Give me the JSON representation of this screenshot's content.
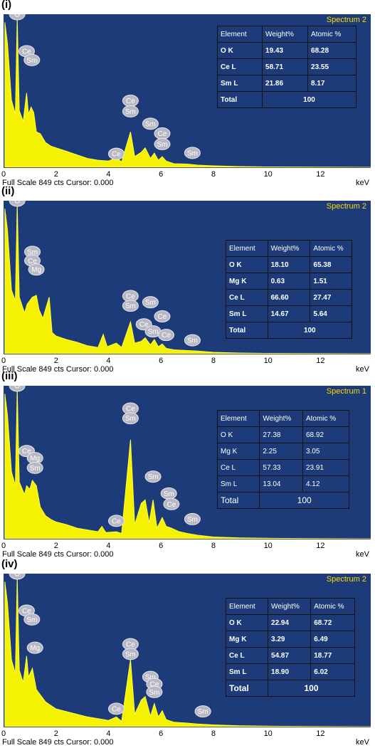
{
  "footer_text": "Full Scale 849 cts Cursor: 0.000",
  "x_unit": "keV",
  "chart_data": [
    {
      "panel_label": "(i)",
      "type": "line",
      "title": "Spectrum 2",
      "xlabel": "keV",
      "xlim": [
        0,
        14
      ],
      "ylim": [
        0,
        849
      ],
      "x_ticks": [
        "0",
        "2",
        "4",
        "6",
        "8",
        "10",
        "12"
      ],
      "series": [
        {
          "values": [
            [
              0.05,
              820
            ],
            [
              0.15,
              700
            ],
            [
              0.3,
              380
            ],
            [
              0.45,
              300
            ],
            [
              0.52,
              849
            ],
            [
              0.6,
              320
            ],
            [
              0.75,
              260
            ],
            [
              0.88,
              420
            ],
            [
              0.95,
              300
            ],
            [
              1.05,
              340
            ],
            [
              1.15,
              310
            ],
            [
              1.25,
              200
            ],
            [
              1.4,
              190
            ],
            [
              1.6,
              140
            ],
            [
              1.8,
              120
            ],
            [
              2.0,
              110
            ],
            [
              2.4,
              90
            ],
            [
              2.8,
              70
            ],
            [
              3.2,
              50
            ],
            [
              3.6,
              40
            ],
            [
              4.0,
              35
            ],
            [
              4.3,
              55
            ],
            [
              4.5,
              30
            ],
            [
              4.84,
              200
            ],
            [
              5.0,
              60
            ],
            [
              5.25,
              85
            ],
            [
              5.4,
              110
            ],
            [
              5.6,
              50
            ],
            [
              5.75,
              80
            ],
            [
              5.9,
              40
            ],
            [
              6.05,
              60
            ],
            [
              6.2,
              35
            ],
            [
              6.5,
              20
            ],
            [
              7.0,
              18
            ],
            [
              7.4,
              12
            ],
            [
              8.0,
              8
            ],
            [
              9.0,
              4
            ],
            [
              10.0,
              2
            ],
            [
              12.0,
              1
            ],
            [
              14.0,
              0
            ]
          ]
        }
      ],
      "peak_labels": [
        {
          "label": "O",
          "x": 0.52,
          "y": 849
        },
        {
          "label": "Ce",
          "x": 0.88,
          "y": 640
        },
        {
          "label": "Sm",
          "x": 1.08,
          "y": 590
        },
        {
          "label": "Ce",
          "x": 4.3,
          "y": 60
        },
        {
          "label": "Ce",
          "x": 4.84,
          "y": 360
        },
        {
          "label": "Sm",
          "x": 4.84,
          "y": 300
        },
        {
          "label": "Sm",
          "x": 5.6,
          "y": 230
        },
        {
          "label": "Ce",
          "x": 6.05,
          "y": 175
        },
        {
          "label": "Sm",
          "x": 6.05,
          "y": 115
        },
        {
          "label": "Sm",
          "x": 7.2,
          "y": 65
        }
      ],
      "table": {
        "headers": [
          "Element",
          "Weight%",
          "Atomic %"
        ],
        "rows": [
          [
            "O K",
            "19.43",
            "68.28"
          ],
          [
            "Ce L",
            "58.71",
            "23.55"
          ],
          [
            "Sm L",
            "21.86",
            "8.17"
          ]
        ],
        "total_label": "Total",
        "total_value": "100"
      }
    },
    {
      "panel_label": "(ii)",
      "type": "line",
      "title": "Spectrum 2",
      "xlabel": "keV",
      "xlim": [
        0,
        14
      ],
      "ylim": [
        0,
        849
      ],
      "x_ticks": [
        "0",
        "2",
        "4",
        "6",
        "8",
        "10",
        "12"
      ],
      "series": [
        {
          "values": [
            [
              0.05,
              820
            ],
            [
              0.15,
              700
            ],
            [
              0.3,
              360
            ],
            [
              0.45,
              300
            ],
            [
              0.52,
              849
            ],
            [
              0.6,
              320
            ],
            [
              0.8,
              230
            ],
            [
              0.9,
              280
            ],
            [
              1.0,
              300
            ],
            [
              1.1,
              320
            ],
            [
              1.25,
              330
            ],
            [
              1.35,
              250
            ],
            [
              1.5,
              200
            ],
            [
              1.74,
              320
            ],
            [
              1.85,
              120
            ],
            [
              2.0,
              100
            ],
            [
              2.4,
              80
            ],
            [
              2.8,
              65
            ],
            [
              3.2,
              45
            ],
            [
              3.6,
              35
            ],
            [
              3.8,
              110
            ],
            [
              3.95,
              40
            ],
            [
              4.3,
              60
            ],
            [
              4.5,
              35
            ],
            [
              4.84,
              180
            ],
            [
              5.0,
              60
            ],
            [
              5.25,
              70
            ],
            [
              5.4,
              90
            ],
            [
              5.6,
              50
            ],
            [
              5.75,
              80
            ],
            [
              5.9,
              40
            ],
            [
              6.05,
              55
            ],
            [
              6.2,
              30
            ],
            [
              6.5,
              22
            ],
            [
              7.0,
              18
            ],
            [
              7.4,
              15
            ],
            [
              8.0,
              8
            ],
            [
              9.0,
              4
            ],
            [
              10.0,
              2
            ],
            [
              12.0,
              1
            ],
            [
              14.0,
              0
            ]
          ]
        }
      ],
      "peak_labels": [
        {
          "label": "O",
          "x": 0.52,
          "y": 849
        },
        {
          "label": "Sm",
          "x": 1.1,
          "y": 560
        },
        {
          "label": "Ce",
          "x": 1.1,
          "y": 510
        },
        {
          "label": "Mg",
          "x": 1.25,
          "y": 460
        },
        {
          "label": "Ce",
          "x": 4.84,
          "y": 310
        },
        {
          "label": "Sm",
          "x": 4.84,
          "y": 255
        },
        {
          "label": "Sm",
          "x": 5.6,
          "y": 275
        },
        {
          "label": "Ce",
          "x": 5.35,
          "y": 150
        },
        {
          "label": "Ce",
          "x": 6.05,
          "y": 195
        },
        {
          "label": "Sm",
          "x": 5.7,
          "y": 110
        },
        {
          "label": "Ce",
          "x": 6.2,
          "y": 90
        },
        {
          "label": "Sm",
          "x": 7.2,
          "y": 60
        }
      ],
      "table": {
        "headers": [
          "Element",
          "Weight%",
          "Atomic %"
        ],
        "rows": [
          [
            "O K",
            "18.10",
            "65.38"
          ],
          [
            "Mg K",
            "0.63",
            "1.51"
          ],
          [
            "Ce L",
            "66.60",
            "27.47"
          ],
          [
            "Sm L",
            "14.67",
            "5.64"
          ]
        ],
        "total_label": "Total",
        "total_value": "100"
      }
    },
    {
      "panel_label": "(iii)",
      "type": "line",
      "title": "Spectrum 1",
      "xlabel": "keV",
      "xlim": [
        0,
        14
      ],
      "ylim": [
        0,
        849
      ],
      "x_ticks": [
        "0",
        "2",
        "4",
        "6",
        "8",
        "10",
        "12"
      ],
      "series": [
        {
          "values": [
            [
              0.05,
              820
            ],
            [
              0.15,
              700
            ],
            [
              0.3,
              380
            ],
            [
              0.45,
              300
            ],
            [
              0.52,
              849
            ],
            [
              0.6,
              320
            ],
            [
              0.8,
              250
            ],
            [
              0.88,
              300
            ],
            [
              1.0,
              280
            ],
            [
              1.1,
              330
            ],
            [
              1.25,
              300
            ],
            [
              1.4,
              180
            ],
            [
              1.6,
              130
            ],
            [
              1.8,
              110
            ],
            [
              2.0,
              95
            ],
            [
              2.4,
              80
            ],
            [
              2.8,
              60
            ],
            [
              3.2,
              50
            ],
            [
              3.6,
              40
            ],
            [
              3.75,
              70
            ],
            [
              3.9,
              35
            ],
            [
              4.3,
              40
            ],
            [
              4.5,
              30
            ],
            [
              4.84,
              560
            ],
            [
              5.0,
              80
            ],
            [
              5.25,
              200
            ],
            [
              5.4,
              220
            ],
            [
              5.55,
              90
            ],
            [
              5.7,
              220
            ],
            [
              5.85,
              60
            ],
            [
              6.05,
              120
            ],
            [
              6.2,
              70
            ],
            [
              6.4,
              60
            ],
            [
              6.7,
              40
            ],
            [
              7.0,
              30
            ],
            [
              7.4,
              20
            ],
            [
              8.0,
              10
            ],
            [
              9.0,
              5
            ],
            [
              10.0,
              3
            ],
            [
              12.0,
              1
            ],
            [
              14.0,
              0
            ]
          ]
        }
      ],
      "peak_labels": [
        {
          "label": "O",
          "x": 0.52,
          "y": 849
        },
        {
          "label": "Ce",
          "x": 0.88,
          "y": 480
        },
        {
          "label": "Mg",
          "x": 1.2,
          "y": 440
        },
        {
          "label": "Sm",
          "x": 1.2,
          "y": 385
        },
        {
          "label": "Ce",
          "x": 4.3,
          "y": 85
        },
        {
          "label": "Ce",
          "x": 4.84,
          "y": 720
        },
        {
          "label": "Sm",
          "x": 4.84,
          "y": 665
        },
        {
          "label": "Sm",
          "x": 5.7,
          "y": 335
        },
        {
          "label": "Sm",
          "x": 6.3,
          "y": 240
        },
        {
          "label": "Ce",
          "x": 6.4,
          "y": 180
        },
        {
          "label": "Sm",
          "x": 7.2,
          "y": 95
        }
      ],
      "table": {
        "headers": [
          "Element",
          "Weight%",
          "Atomic %"
        ],
        "rows": [
          [
            "O K",
            "27.38",
            "68.92"
          ],
          [
            "Mg K",
            "2.25",
            "3.05"
          ],
          [
            "Ce L",
            "57.33",
            "23.91"
          ],
          [
            "Sm L",
            "13.04",
            "4.12"
          ]
        ],
        "total_label": "Total",
        "total_value": "100"
      }
    },
    {
      "panel_label": "(iv)",
      "type": "line",
      "title": "Spectrum 2",
      "xlabel": "keV",
      "xlim": [
        0,
        14
      ],
      "ylim": [
        0,
        849
      ],
      "x_ticks": [
        "0",
        "2",
        "4",
        "6",
        "8",
        "10",
        "12"
      ],
      "series": [
        {
          "values": [
            [
              0.05,
              820
            ],
            [
              0.15,
              700
            ],
            [
              0.3,
              380
            ],
            [
              0.45,
              300
            ],
            [
              0.52,
              849
            ],
            [
              0.6,
              320
            ],
            [
              0.75,
              250
            ],
            [
              0.88,
              400
            ],
            [
              0.95,
              280
            ],
            [
              1.1,
              330
            ],
            [
              1.25,
              210
            ],
            [
              1.4,
              180
            ],
            [
              1.6,
              140
            ],
            [
              1.8,
              120
            ],
            [
              2.0,
              100
            ],
            [
              2.4,
              85
            ],
            [
              2.8,
              70
            ],
            [
              3.2,
              55
            ],
            [
              3.6,
              45
            ],
            [
              4.0,
              35
            ],
            [
              4.3,
              55
            ],
            [
              4.5,
              30
            ],
            [
              4.84,
              380
            ],
            [
              5.0,
              70
            ],
            [
              5.25,
              150
            ],
            [
              5.4,
              170
            ],
            [
              5.6,
              60
            ],
            [
              5.75,
              130
            ],
            [
              5.9,
              55
            ],
            [
              6.05,
              90
            ],
            [
              6.2,
              40
            ],
            [
              6.5,
              25
            ],
            [
              7.0,
              20
            ],
            [
              7.4,
              15
            ],
            [
              8.0,
              10
            ],
            [
              9.0,
              5
            ],
            [
              10.0,
              3
            ],
            [
              12.0,
              1
            ],
            [
              14.0,
              0
            ]
          ]
        }
      ],
      "peak_labels": [
        {
          "label": "O",
          "x": 0.52,
          "y": 849
        },
        {
          "label": "Ce",
          "x": 0.88,
          "y": 640
        },
        {
          "label": "Sm",
          "x": 1.08,
          "y": 590
        },
        {
          "label": "Mg",
          "x": 1.2,
          "y": 430
        },
        {
          "label": "Ce",
          "x": 4.3,
          "y": 85
        },
        {
          "label": "Ce",
          "x": 4.84,
          "y": 450
        },
        {
          "label": "Sm",
          "x": 4.84,
          "y": 395
        },
        {
          "label": "Sm",
          "x": 5.6,
          "y": 265
        },
        {
          "label": "Ce",
          "x": 5.75,
          "y": 225
        },
        {
          "label": "Sm",
          "x": 5.75,
          "y": 180
        },
        {
          "label": "Sm",
          "x": 7.6,
          "y": 70
        }
      ],
      "table": {
        "headers": [
          "Element",
          "Weight%",
          "Atomic %"
        ],
        "rows": [
          [
            "O K",
            "22.94",
            "68.72"
          ],
          [
            "Mg K",
            "3.29",
            "6.49"
          ],
          [
            "Ce L",
            "54.87",
            "18.77"
          ],
          [
            "Sm L",
            "18.90",
            "6.02"
          ]
        ],
        "total_label": "Total",
        "total_value": "100"
      }
    }
  ]
}
